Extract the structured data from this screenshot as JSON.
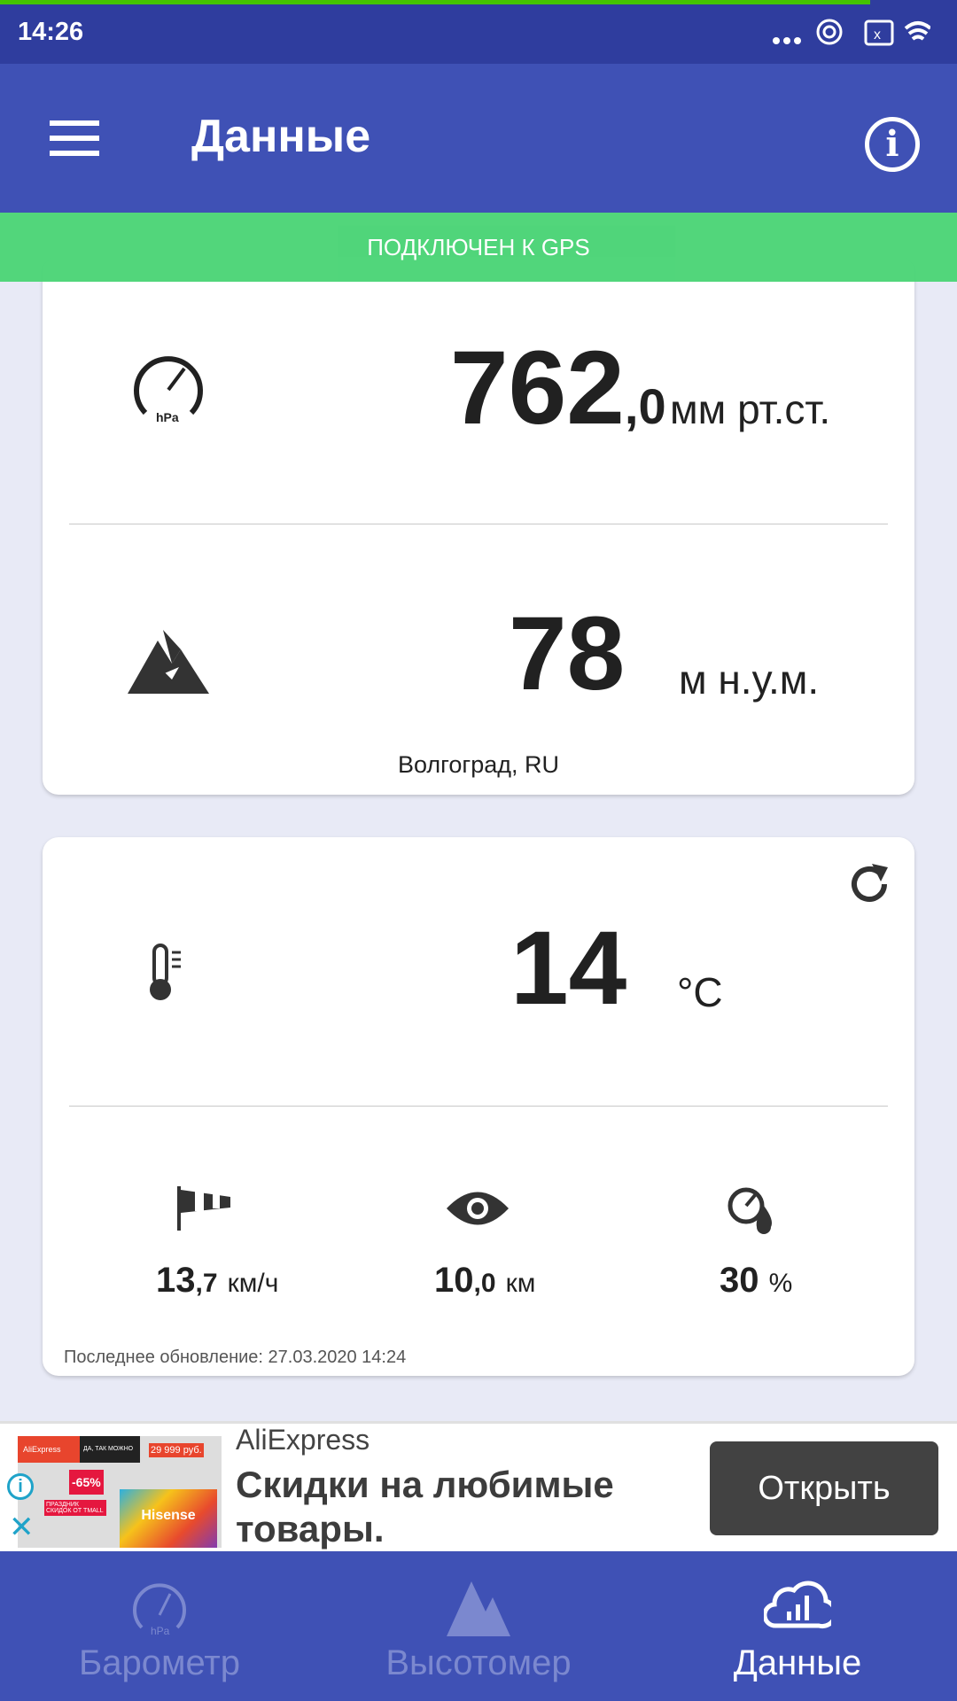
{
  "status_bar": {
    "time": "14:26"
  },
  "app_bar": {
    "title": "Данные"
  },
  "gps_banner": "ПОДКЛЮЧЕН К GPS",
  "pressure": {
    "integer": "762",
    "decimal": ",0",
    "unit": "мм рт.ст."
  },
  "altitude": {
    "value": "78",
    "unit": "м н.у.м.",
    "location": "Волгоград, RU"
  },
  "temperature": {
    "value": "14",
    "unit": "°C"
  },
  "wind": {
    "integer": "13",
    "decimal": ",7",
    "unit": "км/ч"
  },
  "visibility": {
    "integer": "10",
    "decimal": ",0",
    "unit": "км"
  },
  "humidity": {
    "value": "30",
    "unit": "%"
  },
  "last_update": "Последнее обновление: 27.03.2020 14:24",
  "ad": {
    "advertiser": "AliExpress",
    "headline": "Скидки на любимые товары.",
    "button": "Открыть",
    "image_texts": [
      "AliExpress",
      "ДА, ТАК МОЖНО",
      "29 999 руб.",
      "-65%",
      "ПРАЗДНИК СКИДОК ОТ TMALL",
      "Hisense"
    ]
  },
  "bottom_nav": {
    "items": [
      {
        "label": "Барометр",
        "active": false
      },
      {
        "label": "Высотомер",
        "active": false
      },
      {
        "label": "Данные",
        "active": true
      }
    ]
  },
  "colors": {
    "primary": "#3f51b5",
    "status_bar": "#2f3d9e",
    "gps_banner": "#4cd577",
    "background": "#e8eaf6"
  }
}
